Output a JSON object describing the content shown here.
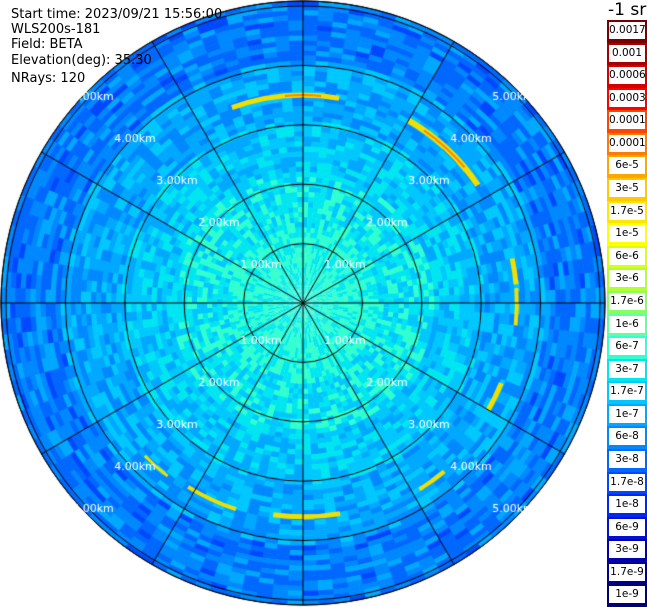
{
  "header": {
    "start_time": "Start time: 2023/09/21 15:56:00",
    "instrument": "WLS200s-181",
    "field": "Field: BETA",
    "elevation": "Elevation(deg): 35.30",
    "nrays": "NRays: 120"
  },
  "unit_label": "-1 sr",
  "range_rings": {
    "labels": [
      "1.00km",
      "2.00km",
      "3.00km",
      "4.00km",
      "5.00km"
    ],
    "ring_values_km": [
      1,
      2,
      3,
      4,
      5,
      6
    ]
  },
  "colorbar": {
    "labels": [
      "0.0017",
      "0.001",
      "0.0006",
      "0.0003",
      "0.00017",
      "0.0001",
      "6e-5",
      "3e-5",
      "1.7e-5",
      "1e-5",
      "6e-6",
      "3e-6",
      "1.7e-6",
      "1e-6",
      "6e-7",
      "3e-7",
      "1.7e-7",
      "1e-7",
      "6e-8",
      "3e-8",
      "1.7e-8",
      "1e-8",
      "6e-9",
      "3e-9",
      "1.7e-9",
      "1e-9"
    ],
    "colors": [
      "#7a0000",
      "#a80000",
      "#d40000",
      "#ff0000",
      "#ff4500",
      "#ff7a00",
      "#ffa500",
      "#ffc800",
      "#ffe600",
      "#ffff00",
      "#d8ff10",
      "#b0ff30",
      "#88ff60",
      "#60ffa0",
      "#30ffd0",
      "#00e6f0",
      "#00c8ff",
      "#00a8ff",
      "#0088ff",
      "#0068ff",
      "#0048ff",
      "#0028f0",
      "#0010d0",
      "#0000b0",
      "#000090",
      "#000070"
    ]
  },
  "colors": {
    "background": "#ffffff",
    "grid": "#000000",
    "outer_blue": "#1050e0",
    "mid_blue": "#1890f0",
    "inner_cyan": "#30c8f0",
    "center_green": "#60e0c0",
    "ring_yellow": "#f0e000",
    "ring_orange": "#ff8000"
  }
}
